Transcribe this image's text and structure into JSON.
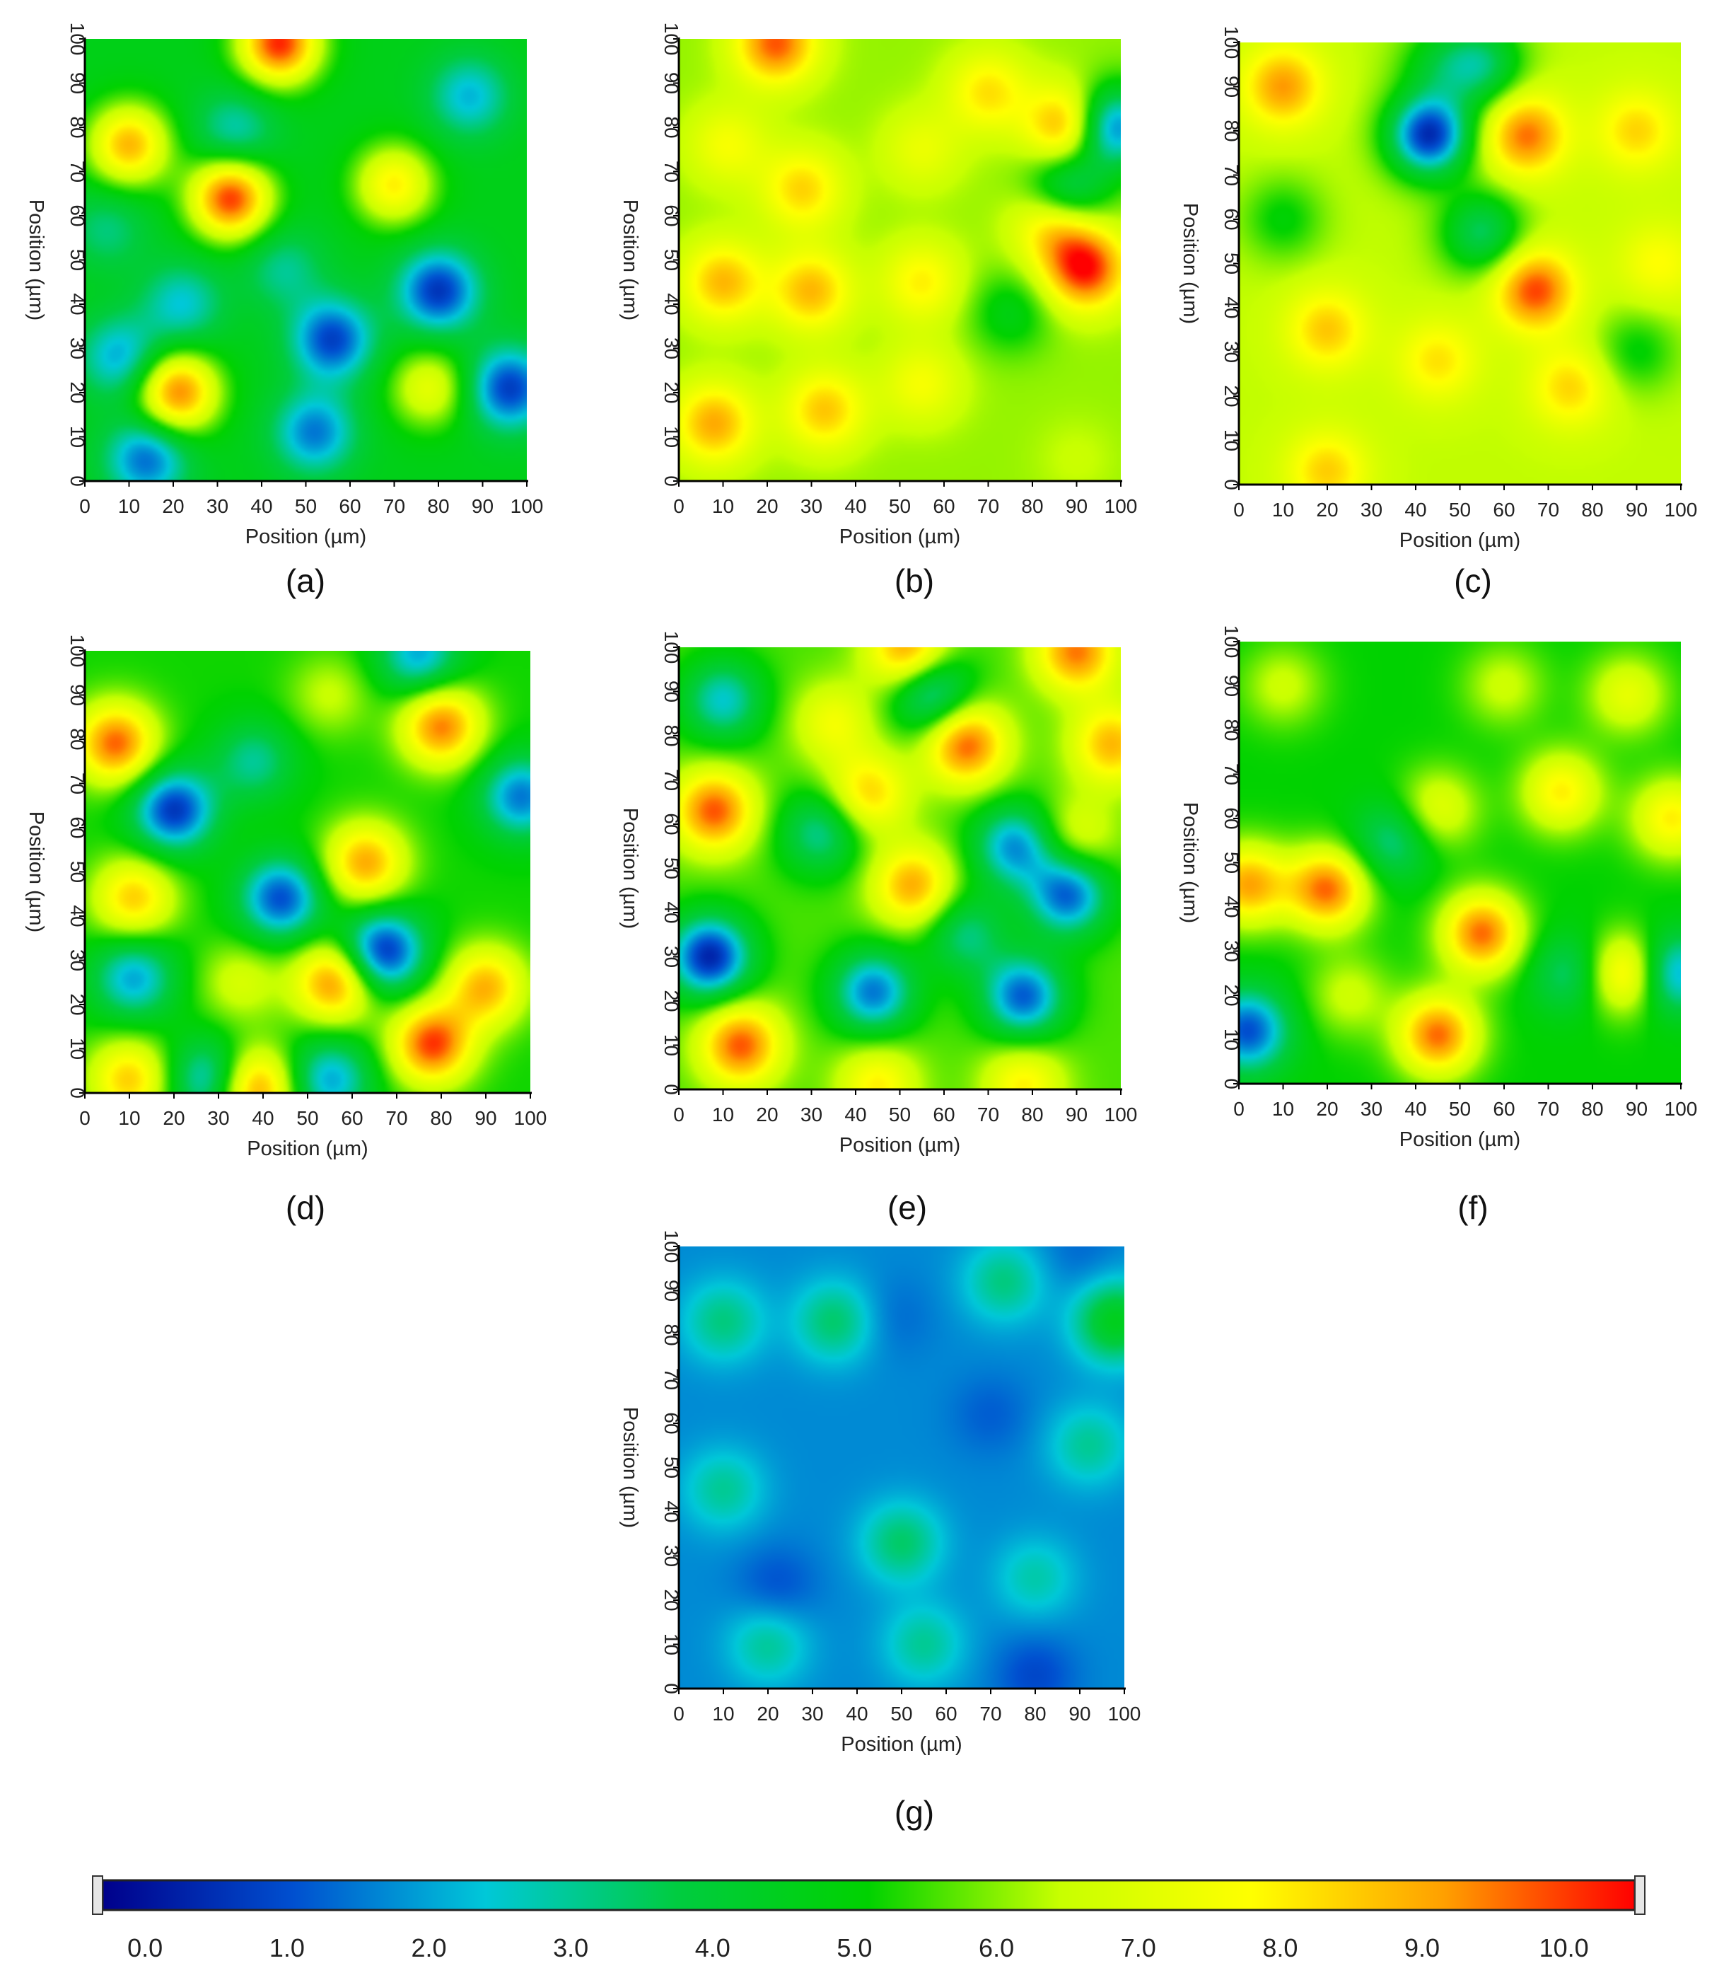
{
  "figure": {
    "colorbar": {
      "min": -0.3,
      "max": 10.5,
      "tick_labels": [
        "0.0",
        "1.0",
        "2.0",
        "3.0",
        "4.0",
        "5.0",
        "6.0",
        "7.0",
        "8.0",
        "9.0",
        "10.0"
      ],
      "tick_values": [
        0,
        1,
        2,
        3,
        4,
        5,
        6,
        7,
        8,
        9,
        10
      ],
      "stops": [
        "#00008b",
        "#0050d0",
        "#00c8d8",
        "#00cc40",
        "#00d200",
        "#c8ff00",
        "#ffff00",
        "#ffa000",
        "#ff0000"
      ]
    }
  },
  "chart_data": [
    {
      "type": "heatmap",
      "panel_label": "(a)",
      "xlabel": "Position (µm)",
      "ylabel": "Position (µm)",
      "xlim": [
        0,
        100
      ],
      "ylim": [
        0,
        100
      ],
      "xticks": [
        "0",
        "10",
        "20",
        "30",
        "40",
        "50",
        "60",
        "70",
        "80",
        "90",
        "100"
      ],
      "yticks": [
        "0",
        "10",
        "20",
        "30",
        "40",
        "50",
        "60",
        "70",
        "80",
        "90",
        "100"
      ],
      "base_value": 4.6,
      "features": [
        {
          "x": 44,
          "y": 99,
          "value": 10.2
        },
        {
          "x": 10,
          "y": 76,
          "value": 8.8
        },
        {
          "x": 33,
          "y": 64,
          "value": 10.1
        },
        {
          "x": 70,
          "y": 67,
          "value": 8.0
        },
        {
          "x": 21,
          "y": 20,
          "value": 9.5
        },
        {
          "x": 78,
          "y": 21,
          "value": 7.2
        },
        {
          "x": 87,
          "y": 87,
          "value": 2.2
        },
        {
          "x": 34,
          "y": 79,
          "value": 2.6
        },
        {
          "x": 80,
          "y": 43,
          "value": 0.6
        },
        {
          "x": 56,
          "y": 32,
          "value": 0.8
        },
        {
          "x": 96,
          "y": 21,
          "value": 0.7
        },
        {
          "x": 52,
          "y": 11,
          "value": 1.5
        },
        {
          "x": 14,
          "y": 5,
          "value": 1.3
        },
        {
          "x": 22,
          "y": 40,
          "value": 2.4
        },
        {
          "x": 8,
          "y": 28,
          "value": 2.0
        },
        {
          "x": 45,
          "y": 48,
          "value": 3.0
        },
        {
          "x": 5,
          "y": 57,
          "value": 3.2
        }
      ]
    },
    {
      "type": "heatmap",
      "panel_label": "(b)",
      "xlabel": "Position (µm)",
      "ylabel": "Position (µm)",
      "xlim": [
        0,
        100
      ],
      "ylim": [
        0,
        100
      ],
      "xticks": [
        "0",
        "10",
        "20",
        "30",
        "40",
        "50",
        "60",
        "70",
        "80",
        "90",
        "100"
      ],
      "yticks": [
        "0",
        "10",
        "20",
        "30",
        "40",
        "50",
        "60",
        "70",
        "80",
        "90",
        "100"
      ],
      "base_value": 6.1,
      "features": [
        {
          "x": 22,
          "y": 99,
          "value": 9.8
        },
        {
          "x": 11,
          "y": 76,
          "value": 7.6
        },
        {
          "x": 28,
          "y": 66,
          "value": 8.4
        },
        {
          "x": 70,
          "y": 88,
          "value": 8.2
        },
        {
          "x": 88,
          "y": 80,
          "value": 9.6
        },
        {
          "x": 98,
          "y": 80,
          "value": 1.2
        },
        {
          "x": 88,
          "y": 66,
          "value": 3.0
        },
        {
          "x": 92,
          "y": 48,
          "value": 10.3
        },
        {
          "x": 85,
          "y": 58,
          "value": 8.6
        },
        {
          "x": 10,
          "y": 45,
          "value": 8.8
        },
        {
          "x": 30,
          "y": 43,
          "value": 8.8
        },
        {
          "x": 55,
          "y": 45,
          "value": 8.0
        },
        {
          "x": 75,
          "y": 38,
          "value": 4.7
        },
        {
          "x": 8,
          "y": 13,
          "value": 9.0
        },
        {
          "x": 33,
          "y": 16,
          "value": 8.6
        },
        {
          "x": 55,
          "y": 22,
          "value": 7.6
        },
        {
          "x": 90,
          "y": 5,
          "value": 6.5
        },
        {
          "x": 55,
          "y": 75,
          "value": 7.3
        }
      ]
    },
    {
      "type": "heatmap",
      "panel_label": "(c)",
      "xlabel": "Position (µm)",
      "ylabel": "Position (µm)",
      "xlim": [
        0,
        100
      ],
      "ylim": [
        0,
        100
      ],
      "xticks": [
        "0",
        "10",
        "20",
        "30",
        "40",
        "50",
        "60",
        "70",
        "80",
        "90",
        "100"
      ],
      "yticks": [
        "0",
        "10",
        "20",
        "30",
        "40",
        "50",
        "60",
        "70",
        "80",
        "90",
        "100"
      ],
      "base_value": 6.4,
      "features": [
        {
          "x": 10,
          "y": 90,
          "value": 9.2
        },
        {
          "x": 43,
          "y": 79,
          "value": 0.5
        },
        {
          "x": 65,
          "y": 79,
          "value": 9.6
        },
        {
          "x": 90,
          "y": 80,
          "value": 8.4
        },
        {
          "x": 55,
          "y": 57,
          "value": 3.5
        },
        {
          "x": 67,
          "y": 44,
          "value": 10.0
        },
        {
          "x": 20,
          "y": 35,
          "value": 8.6
        },
        {
          "x": 45,
          "y": 28,
          "value": 8.2
        },
        {
          "x": 75,
          "y": 22,
          "value": 8.4
        },
        {
          "x": 90,
          "y": 30,
          "value": 5.0
        },
        {
          "x": 95,
          "y": 50,
          "value": 7.8
        },
        {
          "x": 45,
          "y": 95,
          "value": 4.8
        },
        {
          "x": 55,
          "y": 95,
          "value": 3.5
        },
        {
          "x": 20,
          "y": 3,
          "value": 8.5
        },
        {
          "x": 10,
          "y": 60,
          "value": 5.0
        }
      ]
    },
    {
      "type": "heatmap",
      "panel_label": "(d)",
      "xlabel": "Position (µm)",
      "ylabel": "Position (µm)",
      "xlim": [
        0,
        100
      ],
      "ylim": [
        0,
        100
      ],
      "xticks": [
        "0",
        "10",
        "20",
        "30",
        "40",
        "50",
        "60",
        "70",
        "80",
        "90",
        "100"
      ],
      "yticks": [
        "0",
        "10",
        "20",
        "30",
        "40",
        "50",
        "60",
        "70",
        "80",
        "90",
        "100"
      ],
      "base_value": 5.2,
      "features": [
        {
          "x": 7,
          "y": 79,
          "value": 9.7
        },
        {
          "x": 20,
          "y": 64,
          "value": 0.6
        },
        {
          "x": 80,
          "y": 83,
          "value": 9.5
        },
        {
          "x": 63,
          "y": 52,
          "value": 9.0
        },
        {
          "x": 44,
          "y": 44,
          "value": 1.0
        },
        {
          "x": 11,
          "y": 44,
          "value": 8.5
        },
        {
          "x": 67,
          "y": 32,
          "value": 0.4
        },
        {
          "x": 56,
          "y": 25,
          "value": 9.4
        },
        {
          "x": 78,
          "y": 11,
          "value": 10.0
        },
        {
          "x": 90,
          "y": 24,
          "value": 8.8
        },
        {
          "x": 98,
          "y": 67,
          "value": 1.5
        },
        {
          "x": 11,
          "y": 26,
          "value": 2.0
        },
        {
          "x": 35,
          "y": 25,
          "value": 6.8
        },
        {
          "x": 38,
          "y": 1,
          "value": 9.5
        },
        {
          "x": 10,
          "y": 3,
          "value": 8.5
        },
        {
          "x": 55,
          "y": 3,
          "value": 2.0
        },
        {
          "x": 28,
          "y": 3,
          "value": 2.0
        },
        {
          "x": 75,
          "y": 99,
          "value": 2.0
        },
        {
          "x": 55,
          "y": 90,
          "value": 6.5
        },
        {
          "x": 38,
          "y": 75,
          "value": 3.0
        }
      ]
    },
    {
      "type": "heatmap",
      "panel_label": "(e)",
      "xlabel": "Position (µm)",
      "ylabel": "Position (µm)",
      "xlim": [
        0,
        100
      ],
      "ylim": [
        0,
        100
      ],
      "xticks": [
        "0",
        "10",
        "20",
        "30",
        "40",
        "50",
        "60",
        "70",
        "80",
        "90",
        "100"
      ],
      "yticks": [
        "0",
        "10",
        "20",
        "30",
        "40",
        "50",
        "60",
        "70",
        "80",
        "90",
        "100"
      ],
      "base_value": 5.6,
      "features": [
        {
          "x": 8,
          "y": 63,
          "value": 9.8
        },
        {
          "x": 14,
          "y": 10,
          "value": 9.8
        },
        {
          "x": 7,
          "y": 30,
          "value": 0.3
        },
        {
          "x": 43,
          "y": 67,
          "value": 8.4
        },
        {
          "x": 65,
          "y": 78,
          "value": 9.8
        },
        {
          "x": 53,
          "y": 46,
          "value": 9.0
        },
        {
          "x": 90,
          "y": 99,
          "value": 9.5
        },
        {
          "x": 52,
          "y": 99,
          "value": 9.5
        },
        {
          "x": 98,
          "y": 78,
          "value": 8.8
        },
        {
          "x": 35,
          "y": 83,
          "value": 7.5
        },
        {
          "x": 44,
          "y": 22,
          "value": 1.5
        },
        {
          "x": 78,
          "y": 21,
          "value": 1.2
        },
        {
          "x": 88,
          "y": 44,
          "value": 1.2
        },
        {
          "x": 76,
          "y": 55,
          "value": 1.8
        },
        {
          "x": 10,
          "y": 88,
          "value": 2.5
        },
        {
          "x": 57,
          "y": 90,
          "value": 2.2
        },
        {
          "x": 32,
          "y": 58,
          "value": 3.0
        },
        {
          "x": 65,
          "y": 35,
          "value": 3.2
        },
        {
          "x": 90,
          "y": 57,
          "value": 7.2
        },
        {
          "x": 45,
          "y": 1,
          "value": 8.0
        },
        {
          "x": 78,
          "y": 1,
          "value": 8.0
        }
      ]
    },
    {
      "type": "heatmap",
      "panel_label": "(f)",
      "xlabel": "Position (µm)",
      "ylabel": "Position (µm)",
      "xlim": [
        0,
        100
      ],
      "ylim": [
        0,
        100
      ],
      "xticks": [
        "0",
        "10",
        "20",
        "30",
        "40",
        "50",
        "60",
        "70",
        "80",
        "90",
        "100"
      ],
      "yticks": [
        "0",
        "10",
        "20",
        "30",
        "40",
        "50",
        "60",
        "70",
        "80",
        "90",
        "100"
      ],
      "base_value": 5.1,
      "features": [
        {
          "x": 20,
          "y": 44,
          "value": 9.6
        },
        {
          "x": 55,
          "y": 34,
          "value": 9.6
        },
        {
          "x": 45,
          "y": 11,
          "value": 9.6
        },
        {
          "x": 2,
          "y": 45,
          "value": 9.0
        },
        {
          "x": 88,
          "y": 25,
          "value": 8.8
        },
        {
          "x": 73,
          "y": 66,
          "value": 8.0
        },
        {
          "x": 45,
          "y": 62,
          "value": 7.2
        },
        {
          "x": 88,
          "y": 88,
          "value": 7.2
        },
        {
          "x": 35,
          "y": 55,
          "value": 3.0
        },
        {
          "x": 2,
          "y": 12,
          "value": 1.0
        },
        {
          "x": 98,
          "y": 25,
          "value": 1.5
        },
        {
          "x": 75,
          "y": 25,
          "value": 3.2
        },
        {
          "x": 98,
          "y": 60,
          "value": 8.0
        },
        {
          "x": 60,
          "y": 90,
          "value": 6.6
        },
        {
          "x": 10,
          "y": 90,
          "value": 6.6
        },
        {
          "x": 25,
          "y": 20,
          "value": 6.6
        }
      ]
    },
    {
      "type": "heatmap",
      "panel_label": "(g)",
      "xlabel": "Position (µm)",
      "ylabel": "Position (µm)",
      "xlim": [
        0,
        100
      ],
      "ylim": [
        0,
        100
      ],
      "xticks": [
        "0",
        "10",
        "20",
        "30",
        "40",
        "50",
        "60",
        "70",
        "80",
        "90",
        "100"
      ],
      "yticks": [
        "0",
        "10",
        "20",
        "30",
        "40",
        "50",
        "60",
        "70",
        "80",
        "90",
        "100"
      ],
      "base_value": 1.7,
      "features": [
        {
          "x": 10,
          "y": 83,
          "value": 3.2
        },
        {
          "x": 35,
          "y": 83,
          "value": 3.4
        },
        {
          "x": 73,
          "y": 92,
          "value": 3.2
        },
        {
          "x": 98,
          "y": 83,
          "value": 4.5
        },
        {
          "x": 10,
          "y": 45,
          "value": 3.0
        },
        {
          "x": 50,
          "y": 33,
          "value": 3.4
        },
        {
          "x": 20,
          "y": 10,
          "value": 3.0
        },
        {
          "x": 55,
          "y": 10,
          "value": 3.0
        },
        {
          "x": 92,
          "y": 55,
          "value": 3.0
        },
        {
          "x": 80,
          "y": 25,
          "value": 2.8
        },
        {
          "x": 22,
          "y": 23,
          "value": 1.0
        },
        {
          "x": 80,
          "y": 3,
          "value": 0.9
        },
        {
          "x": 48,
          "y": 84,
          "value": 1.3
        },
        {
          "x": 70,
          "y": 62,
          "value": 1.2
        },
        {
          "x": 90,
          "y": 98,
          "value": 1.3
        }
      ]
    }
  ]
}
